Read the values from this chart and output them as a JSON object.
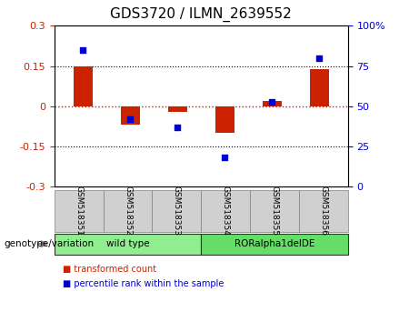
{
  "title": "GDS3720 / ILMN_2639552",
  "samples": [
    "GSM518351",
    "GSM518352",
    "GSM518353",
    "GSM518354",
    "GSM518355",
    "GSM518356"
  ],
  "red_bars": [
    0.15,
    -0.07,
    -0.02,
    -0.1,
    0.02,
    0.14
  ],
  "blue_dots": [
    85,
    42,
    37,
    18,
    53,
    80
  ],
  "ylim_left": [
    -0.3,
    0.3
  ],
  "ylim_right": [
    0,
    100
  ],
  "yticks_left": [
    -0.3,
    -0.15,
    0,
    0.15,
    0.3
  ],
  "yticks_right": [
    0,
    25,
    50,
    75,
    100
  ],
  "hlines": [
    0.15,
    -0.15
  ],
  "bar_color": "#cc2200",
  "dot_color": "#0000cc",
  "zero_line_color": "#cc2200",
  "hline_color": "#000000",
  "bar_width": 0.4,
  "groups": [
    {
      "label": "wild type",
      "samples": [
        0,
        1,
        2
      ],
      "color": "#90ee90"
    },
    {
      "label": "RORalpha1delDE",
      "samples": [
        3,
        4,
        5
      ],
      "color": "#66dd66"
    }
  ],
  "genotype_label": "genotype/variation",
  "legend": [
    {
      "label": "transformed count",
      "color": "#cc2200"
    },
    {
      "label": "percentile rank within the sample",
      "color": "#0000cc"
    }
  ],
  "title_fontsize": 11,
  "axis_fontsize": 8,
  "label_fontsize": 8
}
